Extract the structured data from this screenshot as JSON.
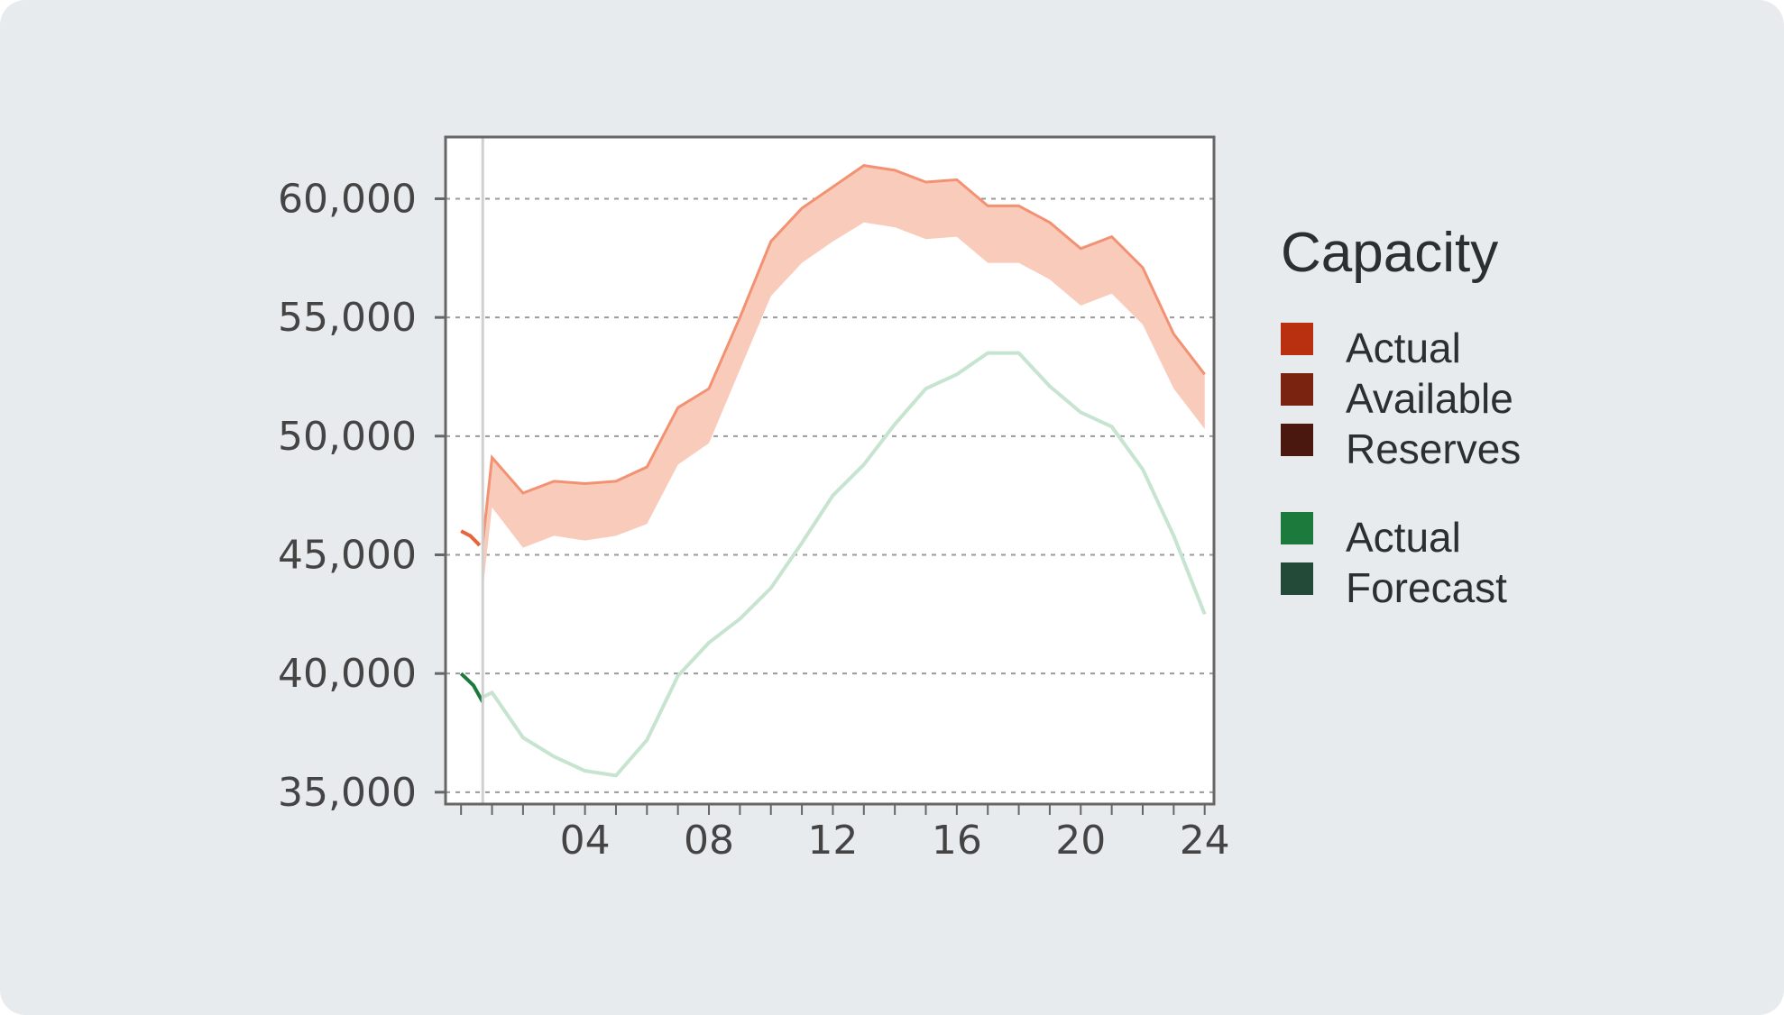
{
  "chart_data": {
    "type": "line",
    "title": "",
    "xlabel": "",
    "ylabel": "",
    "xlim": [
      -0.5,
      24.3
    ],
    "ylim": [
      34500,
      62600
    ],
    "grid": true,
    "x_ticks": [
      4,
      8,
      12,
      16,
      20,
      24
    ],
    "x_tick_labels": [
      "04",
      "08",
      "12",
      "16",
      "20",
      "24"
    ],
    "y_ticks": [
      35000,
      40000,
      45000,
      50000,
      55000,
      60000
    ],
    "y_tick_labels": [
      "35,000",
      "40,000",
      "45,000",
      "50,000",
      "55,000",
      "60,000"
    ],
    "current_time_x": 0.7,
    "capacity_band": {
      "x": [
        0.7,
        1,
        2,
        3,
        4,
        5,
        6,
        7,
        8,
        9,
        10,
        11,
        12,
        13,
        14,
        15,
        16,
        17,
        18,
        19,
        20,
        21,
        22,
        23,
        24
      ],
      "upper": [
        45500,
        49100,
        47600,
        48100,
        48000,
        48100,
        48700,
        51200,
        52000,
        55000,
        58200,
        59600,
        60500,
        61400,
        61200,
        60700,
        60800,
        59700,
        59700,
        59000,
        57900,
        58400,
        57100,
        54300,
        52600
      ],
      "lower": [
        43500,
        47000,
        45300,
        45800,
        45600,
        45800,
        46300,
        48800,
        49700,
        52800,
        55900,
        57300,
        58200,
        59000,
        58800,
        58300,
        58400,
        57300,
        57300,
        56600,
        55500,
        56000,
        54700,
        52000,
        50300
      ]
    },
    "series": [
      {
        "name": "Actual",
        "group": "capacity",
        "x": [
          0,
          0.3,
          0.6
        ],
        "y": [
          46000,
          45800,
          45400
        ]
      },
      {
        "name": "Actual",
        "group": "demand",
        "x": [
          0,
          0.4,
          0.7
        ],
        "y": [
          40000,
          39500,
          38800
        ]
      },
      {
        "name": "Forecast",
        "group": "demand",
        "x": [
          0.7,
          1,
          2,
          3,
          4,
          5,
          6,
          7,
          8,
          9,
          10,
          11,
          12,
          13,
          14,
          15,
          16,
          17,
          18,
          19,
          20,
          21,
          22,
          23,
          24
        ],
        "y": [
          39000,
          39200,
          37300,
          36500,
          35900,
          35700,
          37200,
          39900,
          41300,
          42300,
          43600,
          45500,
          47500,
          48800,
          50500,
          52000,
          52600,
          53500,
          53500,
          52100,
          51000,
          50400,
          48600,
          45800,
          42500
        ]
      }
    ]
  },
  "legend": {
    "title": "Capacity",
    "groups": [
      {
        "items": [
          {
            "label": "Actual",
            "color": "#b83010"
          },
          {
            "label": "Available",
            "color": "#7a2310"
          },
          {
            "label": "Reserves",
            "color": "#4a180e"
          }
        ]
      },
      {
        "items": [
          {
            "label": "Actual",
            "color": "#1b7a3c"
          },
          {
            "label": "Forecast",
            "color": "#234a38"
          }
        ]
      }
    ]
  },
  "colors": {
    "capacity_actual_line": "#e8643c",
    "capacity_band_fill": "#f9cbbb",
    "capacity_band_edge": "#f39273",
    "demand_actual_line": "#1b7a3c",
    "demand_forecast_line": "#c7e4d1"
  }
}
